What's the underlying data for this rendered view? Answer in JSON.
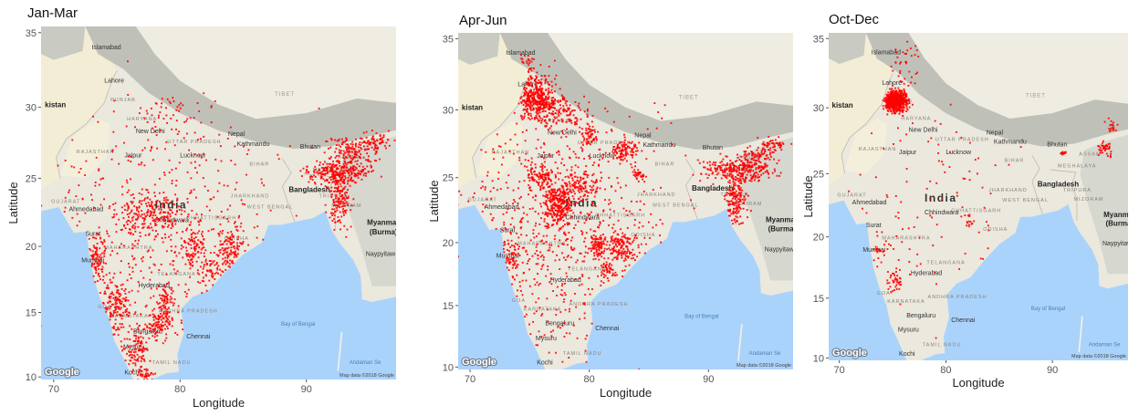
{
  "figure": {
    "axis_x_label": "Longitude",
    "axis_y_label": "Latitude",
    "x_ticks": [
      "70",
      "80",
      "90"
    ],
    "y_ticks": [
      "35",
      "30",
      "25",
      "20",
      "15",
      "10"
    ],
    "lon_range": [
      69.0,
      97.1
    ],
    "lat_range": [
      9.8,
      35.4
    ],
    "logo": "Google",
    "attribution": "Map data ©2018 Google",
    "fire_color": "#ff0000",
    "ocean_color": "#aad3fb",
    "land_color": "#ebe8de"
  },
  "places": [
    {
      "name": "Islamabad",
      "lon": 73.0,
      "lat": 33.9,
      "type": "city"
    },
    {
      "name": "Lahore",
      "lon": 74.0,
      "lat": 31.7,
      "type": "city"
    },
    {
      "name": "kistan",
      "lon": 69.3,
      "lat": 30.0,
      "type": "country"
    },
    {
      "name": "PUNJAB",
      "lon": 74.5,
      "lat": 30.4,
      "type": "region"
    },
    {
      "name": "HARYANA",
      "lon": 75.8,
      "lat": 29.1,
      "type": "region"
    },
    {
      "name": "New Delhi",
      "lon": 76.5,
      "lat": 28.2,
      "type": "city"
    },
    {
      "name": "UTTAR PRADESH",
      "lon": 79.0,
      "lat": 27.5,
      "type": "region"
    },
    {
      "name": "RAJASTHAN",
      "lon": 71.8,
      "lat": 26.8,
      "type": "region"
    },
    {
      "name": "Jaipur",
      "lon": 75.6,
      "lat": 26.5,
      "type": "city"
    },
    {
      "name": "Lucknow",
      "lon": 80.0,
      "lat": 26.5,
      "type": "city"
    },
    {
      "name": "Nepal",
      "lon": 83.8,
      "lat": 28.0,
      "type": "city"
    },
    {
      "name": "Kathmandu",
      "lon": 84.5,
      "lat": 27.3,
      "type": "city"
    },
    {
      "name": "TIBET",
      "lon": 87.5,
      "lat": 30.8,
      "type": "tibet"
    },
    {
      "name": "Bhutan",
      "lon": 89.5,
      "lat": 27.1,
      "type": "city"
    },
    {
      "name": "BIHAR",
      "lon": 85.5,
      "lat": 25.9,
      "type": "region"
    },
    {
      "name": "ASSAM",
      "lon": 92.5,
      "lat": 26.4,
      "type": "region"
    },
    {
      "name": "MEGHALAYA",
      "lon": 90.5,
      "lat": 25.5,
      "type": "region"
    },
    {
      "name": "Bangladesh",
      "lon": 88.6,
      "lat": 24.0,
      "type": "country"
    },
    {
      "name": "JHARKHAND",
      "lon": 84.0,
      "lat": 23.6,
      "type": "region"
    },
    {
      "name": "WEST BENGAL",
      "lon": 85.3,
      "lat": 22.8,
      "type": "region"
    },
    {
      "name": "TRIPURA",
      "lon": 91.0,
      "lat": 23.6,
      "type": "region"
    },
    {
      "name": "MIZORAM",
      "lon": 92.0,
      "lat": 22.9,
      "type": "region"
    },
    {
      "name": "India",
      "lon": 78.0,
      "lat": 22.8,
      "type": "big"
    },
    {
      "name": "CHHATTISGARH",
      "lon": 80.5,
      "lat": 22.0,
      "type": "region"
    },
    {
      "name": "Chhindwara",
      "lon": 78.0,
      "lat": 21.8,
      "type": "city"
    },
    {
      "name": "ODISHA",
      "lon": 83.5,
      "lat": 20.5,
      "type": "region"
    },
    {
      "name": "GUJARAT",
      "lon": 69.8,
      "lat": 23.2,
      "type": "region"
    },
    {
      "name": "Ahmedabad",
      "lon": 71.2,
      "lat": 22.6,
      "type": "city"
    },
    {
      "name": "Surat",
      "lon": 72.5,
      "lat": 20.8,
      "type": "city"
    },
    {
      "name": "Myanmar",
      "lon": 94.8,
      "lat": 21.6,
      "type": "country"
    },
    {
      "name": "(Burma)",
      "lon": 95.0,
      "lat": 20.9,
      "type": "country"
    },
    {
      "name": "Naypyitaw",
      "lon": 94.7,
      "lat": 19.3,
      "type": "city"
    },
    {
      "name": "MAHARASHTRA",
      "lon": 74.0,
      "lat": 19.8,
      "type": "region"
    },
    {
      "name": "Mumbai",
      "lon": 72.2,
      "lat": 18.8,
      "type": "city"
    },
    {
      "name": "TELANGANA",
      "lon": 78.2,
      "lat": 17.8,
      "type": "region"
    },
    {
      "name": "Hyderabad",
      "lon": 76.7,
      "lat": 16.9,
      "type": "city"
    },
    {
      "name": "GOA",
      "lon": 73.5,
      "lat": 15.3,
      "type": "region"
    },
    {
      "name": "KARNATAKA",
      "lon": 74.5,
      "lat": 14.6,
      "type": "region"
    },
    {
      "name": "ANDHRA PRADESH",
      "lon": 78.3,
      "lat": 15.0,
      "type": "region"
    },
    {
      "name": "Bengaluru",
      "lon": 76.3,
      "lat": 13.4,
      "type": "city"
    },
    {
      "name": "Chennai",
      "lon": 80.5,
      "lat": 13.0,
      "type": "city"
    },
    {
      "name": "Bay of Bengal",
      "lon": 88.0,
      "lat": 14.0,
      "type": "ocean"
    },
    {
      "name": "Mysuru",
      "lon": 75.5,
      "lat": 12.2,
      "type": "city"
    },
    {
      "name": "TAMIL NADU",
      "lon": 77.8,
      "lat": 11.0,
      "type": "region"
    },
    {
      "name": "Kochi",
      "lon": 75.6,
      "lat": 10.2,
      "type": "city"
    },
    {
      "name": "Andaman Se",
      "lon": 93.4,
      "lat": 11.0,
      "type": "ocean"
    }
  ],
  "panels": [
    {
      "title": "Jan-Mar",
      "clusters": [
        {
          "lon": 92.5,
          "lat": 25.4,
          "sd_lon": 1.2,
          "sd_lat": 0.4,
          "n": 260
        },
        {
          "lon": 93.6,
          "lat": 26.9,
          "sd_lon": 1.1,
          "sd_lat": 0.5,
          "n": 160
        },
        {
          "lon": 92.6,
          "lat": 23.5,
          "sd_lon": 0.45,
          "sd_lat": 1.1,
          "n": 160
        },
        {
          "lon": 95.6,
          "lat": 27.6,
          "sd_lon": 0.7,
          "sd_lat": 0.35,
          "n": 60
        },
        {
          "lon": 76.8,
          "lat": 22.3,
          "sd_lon": 0.9,
          "sd_lat": 0.7,
          "n": 120
        },
        {
          "lon": 78.8,
          "lat": 22.4,
          "sd_lon": 0.8,
          "sd_lat": 0.6,
          "n": 60
        },
        {
          "lon": 84.0,
          "lat": 19.8,
          "sd_lon": 0.5,
          "sd_lat": 0.8,
          "n": 120
        },
        {
          "lon": 81.0,
          "lat": 20.0,
          "sd_lon": 0.45,
          "sd_lat": 0.9,
          "n": 100
        },
        {
          "lon": 82.5,
          "lat": 18.3,
          "sd_lon": 0.5,
          "sd_lat": 0.5,
          "n": 50
        },
        {
          "lon": 73.4,
          "lat": 19.0,
          "sd_lon": 0.35,
          "sd_lat": 0.9,
          "n": 100
        },
        {
          "lon": 74.9,
          "lat": 15.5,
          "sd_lon": 0.55,
          "sd_lat": 1.1,
          "n": 160
        },
        {
          "lon": 76.6,
          "lat": 12.0,
          "sd_lon": 0.5,
          "sd_lat": 0.8,
          "n": 100
        },
        {
          "lon": 78.9,
          "lat": 15.6,
          "sd_lon": 0.25,
          "sd_lat": 0.7,
          "n": 80
        },
        {
          "lon": 78.3,
          "lat": 14.0,
          "sd_lon": 0.5,
          "sd_lat": 0.5,
          "n": 80
        },
        {
          "lon": 77.3,
          "lat": 10.2,
          "sd_lon": 0.35,
          "sd_lat": 0.25,
          "n": 40
        },
        {
          "lon": 79.0,
          "lat": 29.6,
          "sd_lon": 1.4,
          "sd_lat": 0.9,
          "n": 50
        },
        {
          "lon": 78.5,
          "lat": 21.0,
          "sd_lon": 4.5,
          "sd_lat": 4.5,
          "n": 550
        }
      ]
    },
    {
      "title": "Apr-Jun",
      "clusters": [
        {
          "lon": 75.5,
          "lat": 30.9,
          "sd_lon": 0.75,
          "sd_lat": 0.75,
          "n": 360
        },
        {
          "lon": 74.8,
          "lat": 32.8,
          "sd_lon": 0.35,
          "sd_lat": 0.55,
          "n": 60
        },
        {
          "lon": 77.6,
          "lat": 29.8,
          "sd_lon": 1.1,
          "sd_lat": 0.65,
          "n": 160
        },
        {
          "lon": 80.0,
          "lat": 28.2,
          "sd_lon": 0.3,
          "sd_lat": 0.35,
          "n": 50
        },
        {
          "lon": 83.1,
          "lat": 27.0,
          "sd_lon": 0.5,
          "sd_lat": 0.35,
          "n": 100
        },
        {
          "lon": 77.4,
          "lat": 22.8,
          "sd_lon": 0.55,
          "sd_lat": 0.85,
          "n": 260
        },
        {
          "lon": 76.0,
          "lat": 25.0,
          "sd_lon": 0.6,
          "sd_lat": 0.45,
          "n": 100
        },
        {
          "lon": 79.2,
          "lat": 24.4,
          "sd_lon": 0.9,
          "sd_lat": 0.5,
          "n": 110
        },
        {
          "lon": 84.2,
          "lat": 25.2,
          "sd_lon": 0.2,
          "sd_lat": 0.2,
          "n": 30
        },
        {
          "lon": 82.7,
          "lat": 19.7,
          "sd_lon": 0.55,
          "sd_lat": 0.55,
          "n": 120
        },
        {
          "lon": 80.8,
          "lat": 19.8,
          "sd_lon": 0.35,
          "sd_lat": 0.35,
          "n": 80
        },
        {
          "lon": 81.5,
          "lat": 17.8,
          "sd_lon": 0.3,
          "sd_lat": 0.4,
          "n": 40
        },
        {
          "lon": 92.4,
          "lat": 25.6,
          "sd_lon": 1.4,
          "sd_lat": 0.45,
          "n": 260
        },
        {
          "lon": 92.3,
          "lat": 23.4,
          "sd_lon": 0.45,
          "sd_lat": 0.9,
          "n": 170
        },
        {
          "lon": 94.0,
          "lat": 26.4,
          "sd_lon": 0.7,
          "sd_lat": 0.7,
          "n": 100
        },
        {
          "lon": 95.5,
          "lat": 27.4,
          "sd_lon": 0.55,
          "sd_lat": 0.3,
          "n": 50
        },
        {
          "lon": 73.5,
          "lat": 19.0,
          "sd_lon": 0.35,
          "sd_lat": 0.9,
          "n": 60
        },
        {
          "lon": 78.0,
          "lat": 20.5,
          "sd_lon": 4.5,
          "sd_lat": 4.8,
          "n": 850
        }
      ]
    },
    {
      "title": "Oct-Dec",
      "clusters": [
        {
          "lon": 75.3,
          "lat": 30.5,
          "sd_lon": 0.5,
          "sd_lat": 0.38,
          "n": 650
        },
        {
          "lon": 76.0,
          "lat": 33.0,
          "sd_lon": 0.7,
          "sd_lat": 1.0,
          "n": 40
        },
        {
          "lon": 95.0,
          "lat": 27.0,
          "sd_lon": 0.35,
          "sd_lat": 0.25,
          "n": 40
        },
        {
          "lon": 91.0,
          "lat": 26.6,
          "sd_lon": 0.2,
          "sd_lat": 0.06,
          "n": 15
        },
        {
          "lon": 95.6,
          "lat": 28.6,
          "sd_lon": 0.3,
          "sd_lat": 0.3,
          "n": 20
        },
        {
          "lon": 75.2,
          "lat": 16.4,
          "sd_lon": 0.35,
          "sd_lat": 0.45,
          "n": 40
        },
        {
          "lon": 73.8,
          "lat": 19.0,
          "sd_lon": 0.3,
          "sd_lat": 0.8,
          "n": 20
        },
        {
          "lon": 82.0,
          "lat": 21.3,
          "sd_lon": 0.3,
          "sd_lat": 0.3,
          "n": 15
        },
        {
          "lon": 78.0,
          "lat": 22.0,
          "sd_lon": 4.0,
          "sd_lat": 5.0,
          "n": 120
        }
      ]
    }
  ]
}
